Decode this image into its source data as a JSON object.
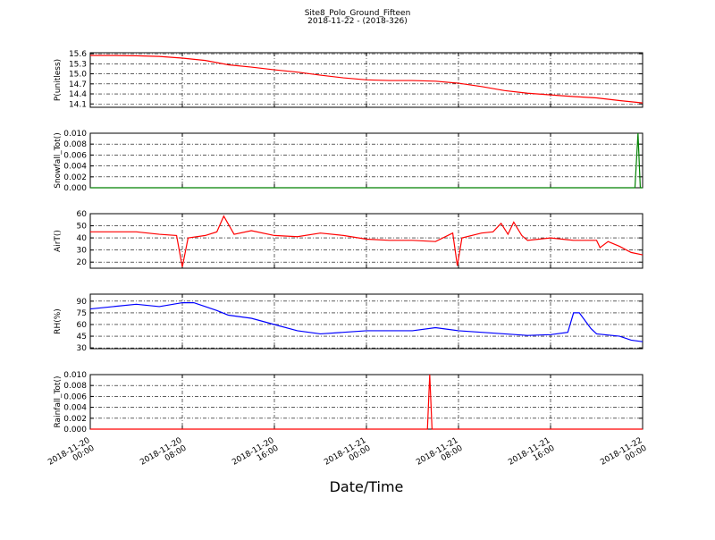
{
  "title": "Site8_Polo_Ground_Fifteen",
  "subtitle": "2018-11-22 - (2018-326)",
  "x_axis": {
    "label": "Date/Time",
    "xlim": [
      "2018-11-20 00:00",
      "2018-11-22 00:00"
    ],
    "xticks": [
      "2018-11-20 00:00",
      "2018-11-20 08:00",
      "2018-11-20 16:00",
      "2018-11-21 00:00",
      "2018-11-21 08:00",
      "2018-11-21 16:00",
      "2018-11-22 00:00"
    ]
  },
  "chart_data": [
    {
      "type": "line",
      "ylabel": "P(unitless)",
      "color": "#ff0000",
      "grid": true,
      "ylim": [
        14.0,
        15.63
      ],
      "yticks": [
        14.1,
        14.4,
        14.7,
        {
          "value": 15.0,
          "label": "15.0"
        },
        15.3,
        15.6
      ],
      "x": [
        "2018-11-20 00:00",
        "2018-11-20 02:00",
        "2018-11-20 04:00",
        "2018-11-20 06:00",
        "2018-11-20 08:00",
        "2018-11-20 10:00",
        "2018-11-20 12:00",
        "2018-11-20 14:00",
        "2018-11-20 16:00",
        "2018-11-20 18:00",
        "2018-11-20 20:00",
        "2018-11-20 22:00",
        "2018-11-21 00:00",
        "2018-11-21 02:00",
        "2018-11-21 04:00",
        "2018-11-21 06:00",
        "2018-11-21 08:00",
        "2018-11-21 10:00",
        "2018-11-21 12:00",
        "2018-11-21 14:00",
        "2018-11-21 16:00",
        "2018-11-21 18:00",
        "2018-11-21 20:00",
        "2018-11-21 22:00",
        "2018-11-22 00:00"
      ],
      "values": [
        15.55,
        15.55,
        15.54,
        15.52,
        15.47,
        15.4,
        15.27,
        15.2,
        15.12,
        15.05,
        14.96,
        14.88,
        14.82,
        14.8,
        14.8,
        14.78,
        14.72,
        14.62,
        14.5,
        14.42,
        14.37,
        14.32,
        14.28,
        14.2,
        14.13
      ]
    },
    {
      "type": "line",
      "ylabel": "Snowfall_Tot()",
      "color": "#008000",
      "grid": true,
      "ylim": [
        0,
        0.01
      ],
      "yticks": [
        {
          "value": 0,
          "label": "0.000"
        },
        {
          "value": 0.002,
          "label": "0.002"
        },
        {
          "value": 0.004,
          "label": "0.004"
        },
        {
          "value": 0.006,
          "label": "0.006"
        },
        {
          "value": 0.008,
          "label": "0.008"
        },
        {
          "value": 0.01,
          "label": "0.010"
        }
      ],
      "x": [
        "2018-11-20 00:00",
        "2018-11-21 23:20",
        "2018-11-21 23:36",
        "2018-11-21 23:48",
        "2018-11-22 00:00"
      ],
      "values": [
        0,
        0,
        0.01,
        0,
        0
      ]
    },
    {
      "type": "line",
      "ylabel": "AirT()",
      "color": "#ff0000",
      "grid": true,
      "ylim": [
        15,
        60
      ],
      "yticks": [
        20,
        30,
        40,
        50,
        60
      ],
      "x": [
        "2018-11-20 00:00",
        "2018-11-20 02:00",
        "2018-11-20 04:00",
        "2018-11-20 06:00",
        "2018-11-20 07:30",
        "2018-11-20 08:00",
        "2018-11-20 08:30",
        "2018-11-20 10:00",
        "2018-11-20 11:00",
        "2018-11-20 11:36",
        "2018-11-20 12:30",
        "2018-11-20 14:00",
        "2018-11-20 16:00",
        "2018-11-20 18:00",
        "2018-11-20 20:00",
        "2018-11-20 22:00",
        "2018-11-21 00:00",
        "2018-11-21 02:00",
        "2018-11-21 04:00",
        "2018-11-21 06:00",
        "2018-11-21 07:30",
        "2018-11-21 07:54",
        "2018-11-21 08:18",
        "2018-11-21 10:00",
        "2018-11-21 11:00",
        "2018-11-21 11:42",
        "2018-11-21 12:18",
        "2018-11-21 12:48",
        "2018-11-21 13:30",
        "2018-11-21 14:00",
        "2018-11-21 16:00",
        "2018-11-21 18:00",
        "2018-11-21 20:00",
        "2018-11-21 20:18",
        "2018-11-21 21:00",
        "2018-11-21 22:00",
        "2018-11-21 23:00",
        "2018-11-22 00:00"
      ],
      "values": [
        45,
        45,
        45,
        43,
        42,
        16,
        40,
        42,
        45,
        58,
        43,
        46,
        42,
        41,
        44,
        42,
        39,
        38,
        38,
        37,
        44,
        17,
        40,
        44,
        45,
        52,
        43,
        53,
        42,
        38,
        40,
        38,
        38,
        32,
        37,
        33,
        28,
        26
      ]
    },
    {
      "type": "line",
      "ylabel": "RH(%)",
      "color": "#0000ff",
      "grid": true,
      "ylim": [
        29,
        99
      ],
      "yticks": [
        30,
        45,
        60,
        75,
        90
      ],
      "x": [
        "2018-11-20 00:00",
        "2018-11-20 02:00",
        "2018-11-20 04:00",
        "2018-11-20 06:00",
        "2018-11-20 08:00",
        "2018-11-20 09:00",
        "2018-11-20 10:00",
        "2018-11-20 11:00",
        "2018-11-20 12:00",
        "2018-11-20 13:00",
        "2018-11-20 14:00",
        "2018-11-20 16:00",
        "2018-11-20 18:00",
        "2018-11-20 20:00",
        "2018-11-20 22:00",
        "2018-11-21 00:00",
        "2018-11-21 02:00",
        "2018-11-21 04:00",
        "2018-11-21 06:00",
        "2018-11-21 08:00",
        "2018-11-21 10:00",
        "2018-11-21 12:00",
        "2018-11-21 14:00",
        "2018-11-21 16:00",
        "2018-11-21 17:30",
        "2018-11-21 18:00",
        "2018-11-21 18:30",
        "2018-11-21 19:30",
        "2018-11-21 20:00",
        "2018-11-21 22:00",
        "2018-11-21 23:00",
        "2018-11-22 00:00"
      ],
      "values": [
        80,
        83,
        86,
        83,
        88,
        88,
        83,
        78,
        72,
        70,
        68,
        60,
        52,
        48,
        50,
        52,
        52,
        52,
        56,
        52,
        50,
        48,
        46,
        47,
        50,
        75,
        75,
        55,
        48,
        45,
        40,
        38
      ]
    },
    {
      "type": "line",
      "ylabel": "Rainfall_Tot()",
      "color": "#ff0000",
      "grid": true,
      "ylim": [
        0,
        0.01
      ],
      "yticks": [
        {
          "value": 0,
          "label": "0.000"
        },
        {
          "value": 0.002,
          "label": "0.002"
        },
        {
          "value": 0.004,
          "label": "0.004"
        },
        {
          "value": 0.006,
          "label": "0.006"
        },
        {
          "value": 0.008,
          "label": "0.008"
        },
        {
          "value": 0.01,
          "label": "0.010"
        }
      ],
      "x": [
        "2018-11-20 00:00",
        "2018-11-21 05:18",
        "2018-11-21 05:30",
        "2018-11-21 05:42",
        "2018-11-22 00:00"
      ],
      "values": [
        0,
        0,
        0.01,
        0,
        0
      ]
    }
  ]
}
